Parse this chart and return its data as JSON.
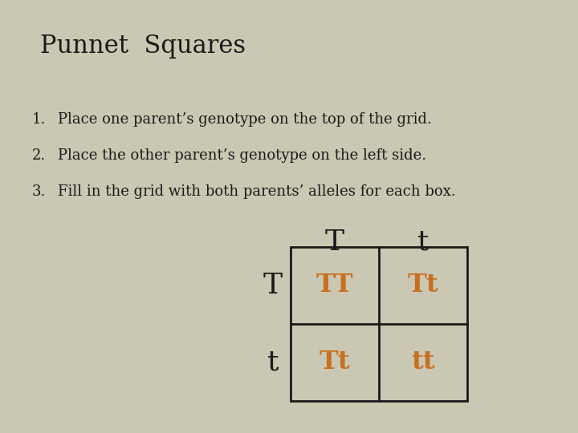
{
  "background_color": "#cac7b2",
  "title": "Punnet  Squares",
  "instructions": [
    "Place one parent’s genotype on the top of the grid.",
    "Place the other parent’s genotype on the left side.",
    "Fill in the grid with both parents’ alleles for each box."
  ],
  "numbers": [
    "1.",
    "2.",
    "3."
  ],
  "top_labels": [
    "T",
    "t"
  ],
  "left_labels": [
    "T",
    "t"
  ],
  "cell_texts": [
    [
      "TT",
      "Tt"
    ],
    [
      "Tt",
      "tt"
    ]
  ],
  "cell_text_color": "#c87020",
  "grid_linecolor": "#1a1a1a",
  "text_color": "#1a1a1a"
}
